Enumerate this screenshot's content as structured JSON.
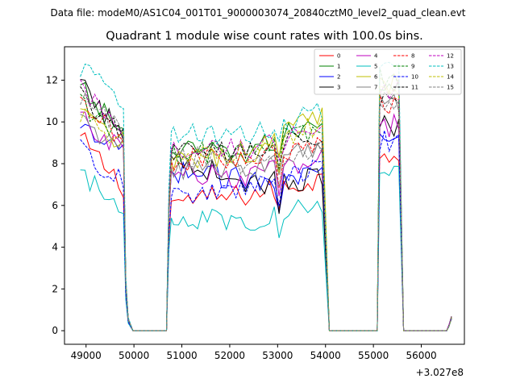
{
  "suptitle": "Data file: modeM0/AS1C04_001T01_9000003074_20840cztM0_level2_quad_clean.evt",
  "chart_data": {
    "type": "line",
    "title": "Quadrant 1 module wise count rates with 100.0s bins.",
    "xlabel": "",
    "ylabel": "",
    "x_offset_label": "+3.027e8",
    "xlim": [
      48550,
      56900
    ],
    "ylim": [
      -0.65,
      13.6
    ],
    "x_ticks": [
      49000,
      50000,
      51000,
      52000,
      53000,
      54000,
      55000,
      56000
    ],
    "x_tick_labels": [
      "49000",
      "50000",
      "51000",
      "52000",
      "53000",
      "54000",
      "55000",
      "56000"
    ],
    "y_ticks": [
      0,
      2,
      4,
      6,
      8,
      10,
      12
    ],
    "y_tick_labels": [
      "0",
      "2",
      "4",
      "6",
      "8",
      "10",
      "12"
    ],
    "grid": false,
    "legend_placement": "top-right",
    "segments": [
      {
        "kind": "data",
        "x_start": 48880,
        "x_end": 49780
      },
      {
        "kind": "drop",
        "x": [
          49830,
          49880
        ],
        "y_frac": [
          0.25,
          0.06
        ]
      },
      {
        "kind": "zero",
        "x_start": 49980,
        "x_end": 50680
      },
      {
        "kind": "rise",
        "x": [
          50730,
          50780
        ],
        "y_frac": [
          0.65,
          0.9
        ]
      },
      {
        "kind": "data",
        "x_start": 50830,
        "x_end": 53980
      },
      {
        "kind": "zero",
        "x_start": 54080,
        "x_end": 55080
      },
      {
        "kind": "data",
        "x_start": 55130,
        "x_end": 55530
      },
      {
        "kind": "zero",
        "x_start": 55630,
        "x_end": 56530
      },
      {
        "kind": "tail",
        "x": [
          56580,
          56630
        ],
        "y": [
          0.2,
          0.55
        ]
      }
    ],
    "series": [
      {
        "name": "0",
        "color": "#ff0000",
        "dash": "solid",
        "start": 9.2,
        "plateau": 6.9,
        "mid": 6.5,
        "end": 7.3,
        "peak": 8.6
      },
      {
        "name": "1",
        "color": "#008000",
        "dash": "solid",
        "start": 11.6,
        "plateau": 9.5,
        "mid": 8.5,
        "end": 10.3,
        "peak": 11.8
      },
      {
        "name": "2",
        "color": "#0000ff",
        "dash": "solid",
        "start": 9.5,
        "plateau": 8.5,
        "mid": 7.2,
        "end": 7.6,
        "peak": 9.6
      },
      {
        "name": "3",
        "color": "#000000",
        "dash": "solid",
        "start": 11.8,
        "plateau": 9.3,
        "mid": 7.0,
        "end": 7.3,
        "peak": 9.8
      },
      {
        "name": "4",
        "color": "#bf00bf",
        "dash": "solid",
        "start": 10.2,
        "plateau": 8.5,
        "mid": 7.3,
        "end": 8.5,
        "peak": 9.8
      },
      {
        "name": "5",
        "color": "#00bfbf",
        "dash": "solid",
        "start": 7.4,
        "plateau": 6.0,
        "mid": 5.3,
        "end": 6.0,
        "peak": 7.4
      },
      {
        "name": "6",
        "color": "#bfbf00",
        "dash": "solid",
        "start": 10.3,
        "plateau": 9.0,
        "mid": 8.4,
        "end": 10.5,
        "peak": 11.9
      },
      {
        "name": "7",
        "color": "#808080",
        "dash": "solid",
        "start": 10.0,
        "plateau": 8.7,
        "mid": 7.7,
        "end": 9.0,
        "peak": 11.0
      },
      {
        "name": "8",
        "color": "#ff0000",
        "dash": "dashed",
        "start": 10.8,
        "plateau": 9.1,
        "mid": 8.3,
        "end": 8.8,
        "peak": 10.9
      },
      {
        "name": "9",
        "color": "#008000",
        "dash": "dashed",
        "start": 10.9,
        "plateau": 9.3,
        "mid": 8.7,
        "end": 9.8,
        "peak": 12.1
      },
      {
        "name": "10",
        "color": "#0000ff",
        "dash": "dashed",
        "start": 8.7,
        "plateau": 7.1,
        "mid": 6.8,
        "end": 7.9,
        "peak": 9.1
      },
      {
        "name": "11",
        "color": "#000000",
        "dash": "dashed",
        "start": 11.2,
        "plateau": 9.5,
        "mid": 8.5,
        "end": 9.4,
        "peak": 11.1
      },
      {
        "name": "12",
        "color": "#bf00bf",
        "dash": "dashed",
        "start": 11.5,
        "plateau": 9.7,
        "mid": 8.7,
        "end": 9.6,
        "peak": 11.6
      },
      {
        "name": "13",
        "color": "#00bfbf",
        "dash": "dashed",
        "start": 12.7,
        "plateau": 10.6,
        "mid": 9.3,
        "end": 10.5,
        "peak": 12.8
      },
      {
        "name": "14",
        "color": "#bfbf00",
        "dash": "dashed",
        "start": 10.5,
        "plateau": 9.0,
        "mid": 8.6,
        "end": 10.0,
        "peak": 11.8
      },
      {
        "name": "15",
        "color": "#808080",
        "dash": "dashed",
        "start": 11.3,
        "plateau": 9.4,
        "mid": 8.0,
        "end": 8.8,
        "peak": 10.9
      }
    ]
  }
}
